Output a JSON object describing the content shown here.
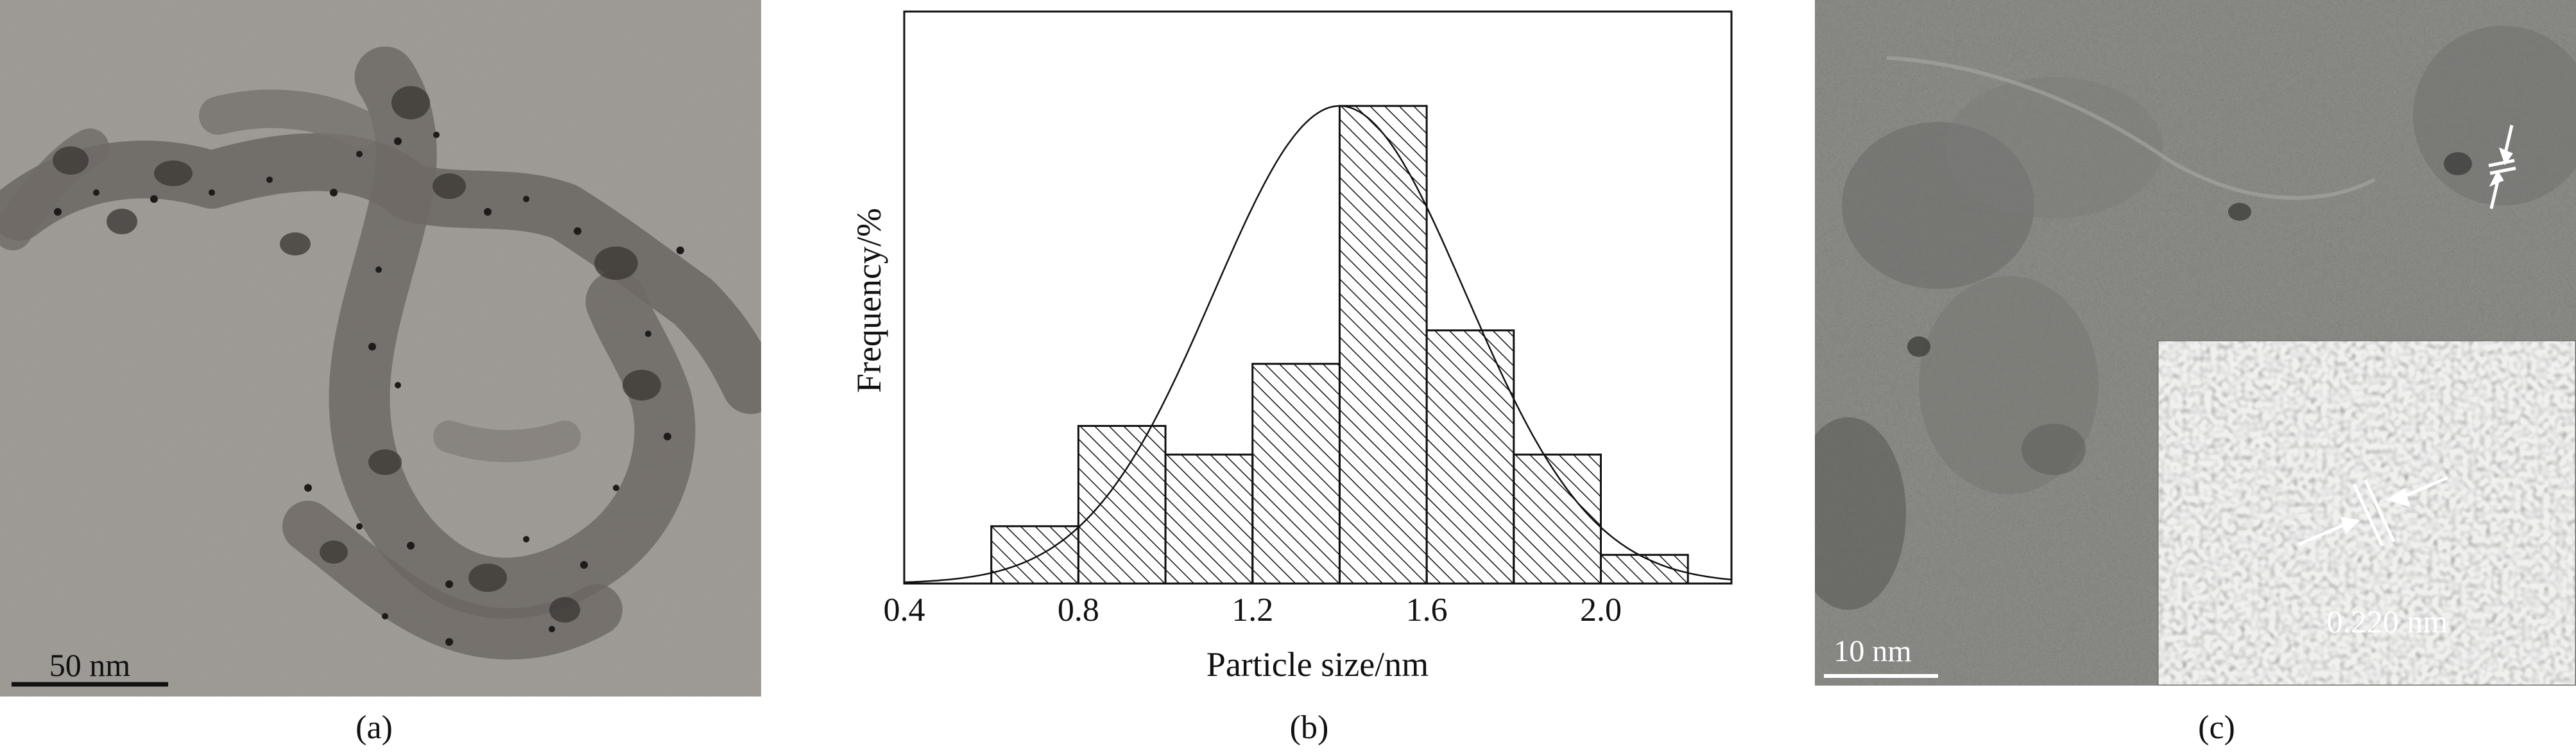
{
  "panel_labels": {
    "a": "(a)",
    "b": "(b)",
    "c": "(c)"
  },
  "panel_a": {
    "scale_bar_label": "50 nm"
  },
  "panel_c": {
    "scale_bar_label": "10 nm",
    "lattice_spacing_label": "0.220 nm"
  },
  "colors": {
    "tem_background": "#a4a09b",
    "particle_dark": "#2a2624",
    "hrtem_background": "#8c8c88",
    "bar_fill": "#ffffff",
    "bar_stroke": "#111111",
    "hatch": "#111111",
    "curve": "#111111"
  },
  "chart_data": {
    "type": "bar",
    "xlabel": "Particle size/nm",
    "ylabel": "Frequency/%",
    "xlim": [
      0.4,
      2.3
    ],
    "ylim": [
      0,
      100
    ],
    "xticks": [
      0.4,
      0.8,
      1.2,
      1.6,
      2.0
    ],
    "xtick_labels": [
      "0.4",
      "0.8",
      "1.2",
      "1.6",
      "2.0"
    ],
    "y_tick_labels_shown": false,
    "grid": false,
    "bar_pattern": "diagonal-hatch",
    "bins": [
      {
        "x0": 0.6,
        "x1": 0.8,
        "value": 12
      },
      {
        "x0": 0.8,
        "x1": 1.0,
        "value": 33
      },
      {
        "x0": 1.0,
        "x1": 1.2,
        "value": 27
      },
      {
        "x0": 1.2,
        "x1": 1.4,
        "value": 46
      },
      {
        "x0": 1.4,
        "x1": 1.6,
        "value": 100
      },
      {
        "x0": 1.6,
        "x1": 1.8,
        "value": 53
      },
      {
        "x0": 1.8,
        "x1": 2.0,
        "value": 27
      },
      {
        "x0": 2.0,
        "x1": 2.2,
        "value": 6
      }
    ],
    "fit_curve": {
      "type": "gaussian",
      "mean": 1.4,
      "sigma": 0.29,
      "peak": 100
    }
  }
}
